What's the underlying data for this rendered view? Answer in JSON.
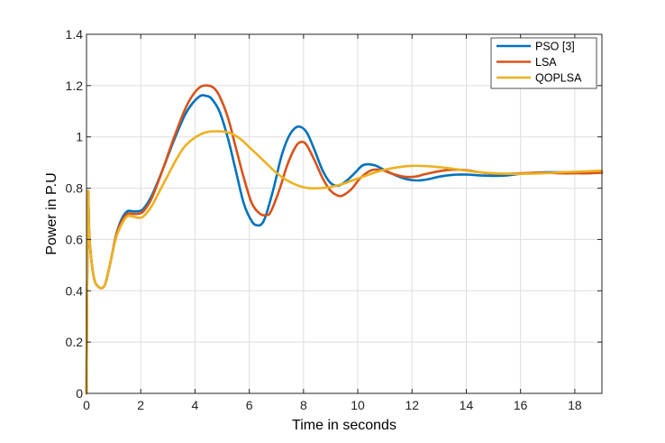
{
  "chart_data": {
    "type": "line",
    "title": "",
    "xlabel": "Time in seconds",
    "ylabel": "Power in P.U",
    "xlim": [
      0,
      19
    ],
    "ylim": [
      0,
      1.4
    ],
    "xticks": [
      0,
      2,
      4,
      6,
      8,
      10,
      12,
      14,
      16,
      18
    ],
    "yticks": [
      0,
      0.2,
      0.4,
      0.6,
      0.8,
      1,
      1.2,
      1.4
    ],
    "grid": true,
    "legend_position": "top-right",
    "series": [
      {
        "name": "PSO [3]",
        "color": "#0072BD",
        "x": [
          0,
          0.05,
          0.1,
          0.2,
          0.3,
          0.4,
          0.55,
          0.7,
          0.9,
          1.1,
          1.3,
          1.5,
          1.7,
          1.9,
          2.1,
          2.4,
          2.8,
          3.2,
          3.6,
          3.9,
          4.2,
          4.4,
          4.6,
          4.9,
          5.2,
          5.5,
          5.8,
          6.1,
          6.3,
          6.45,
          6.6,
          6.9,
          7.2,
          7.5,
          7.8,
          8.1,
          8.4,
          8.7,
          9.0,
          9.3,
          9.6,
          9.9,
          10.2,
          10.6,
          11.0,
          11.4,
          11.8,
          12.2,
          12.6,
          13.0,
          13.5,
          14.0,
          14.5,
          15.0,
          15.5,
          16.0,
          16.5,
          17.0,
          17.5,
          18.0,
          18.5,
          19.0
        ],
        "y": [
          0,
          0.76,
          0.62,
          0.5,
          0.44,
          0.42,
          0.41,
          0.43,
          0.52,
          0.62,
          0.68,
          0.71,
          0.71,
          0.71,
          0.72,
          0.77,
          0.87,
          0.98,
          1.08,
          1.13,
          1.16,
          1.16,
          1.15,
          1.1,
          1.0,
          0.87,
          0.74,
          0.67,
          0.655,
          0.66,
          0.69,
          0.8,
          0.93,
          1.01,
          1.04,
          1.02,
          0.95,
          0.87,
          0.82,
          0.81,
          0.83,
          0.86,
          0.89,
          0.89,
          0.87,
          0.85,
          0.835,
          0.83,
          0.835,
          0.845,
          0.852,
          0.853,
          0.85,
          0.848,
          0.85,
          0.856,
          0.86,
          0.862,
          0.862,
          0.862,
          0.862,
          0.863
        ]
      },
      {
        "name": "LSA",
        "color": "#D95319",
        "x": [
          0,
          0.05,
          0.1,
          0.2,
          0.3,
          0.4,
          0.55,
          0.7,
          0.9,
          1.1,
          1.3,
          1.5,
          1.7,
          1.9,
          2.1,
          2.4,
          2.8,
          3.2,
          3.6,
          3.9,
          4.2,
          4.5,
          4.7,
          4.9,
          5.2,
          5.5,
          5.8,
          6.1,
          6.4,
          6.65,
          6.8,
          7.1,
          7.4,
          7.7,
          7.9,
          8.1,
          8.4,
          8.7,
          9.0,
          9.3,
          9.5,
          9.8,
          10.1,
          10.5,
          10.9,
          11.3,
          11.7,
          12.1,
          12.5,
          13.0,
          13.5,
          14.0,
          14.5,
          15.0,
          15.5,
          16.0,
          16.5,
          17.0,
          17.5,
          18.0,
          18.5,
          19.0
        ],
        "y": [
          0,
          0.76,
          0.62,
          0.5,
          0.44,
          0.42,
          0.41,
          0.43,
          0.52,
          0.62,
          0.67,
          0.7,
          0.7,
          0.7,
          0.71,
          0.76,
          0.87,
          0.99,
          1.1,
          1.16,
          1.195,
          1.2,
          1.19,
          1.16,
          1.08,
          0.96,
          0.84,
          0.74,
          0.7,
          0.695,
          0.71,
          0.79,
          0.89,
          0.96,
          0.98,
          0.97,
          0.91,
          0.84,
          0.79,
          0.77,
          0.775,
          0.8,
          0.84,
          0.87,
          0.87,
          0.855,
          0.845,
          0.845,
          0.855,
          0.866,
          0.872,
          0.87,
          0.862,
          0.857,
          0.856,
          0.858,
          0.86,
          0.86,
          0.858,
          0.858,
          0.858,
          0.86
        ]
      },
      {
        "name": "QOPLSA",
        "color": "#EDB120",
        "x": [
          0,
          0.05,
          0.1,
          0.2,
          0.3,
          0.4,
          0.55,
          0.7,
          0.9,
          1.1,
          1.3,
          1.5,
          1.7,
          1.9,
          2.1,
          2.4,
          2.7,
          3.0,
          3.3,
          3.6,
          3.9,
          4.2,
          4.5,
          4.8,
          5.1,
          5.4,
          5.7,
          6.0,
          6.3,
          6.6,
          7.0,
          7.4,
          7.8,
          8.2,
          8.6,
          9.0,
          9.4,
          9.8,
          10.2,
          10.6,
          11.0,
          11.5,
          12.0,
          12.5,
          13.0,
          13.5,
          14.0,
          14.5,
          15.0,
          15.5,
          16.0,
          16.5,
          17.0,
          17.5,
          18.0,
          18.5,
          19.0
        ],
        "y": [
          0,
          0.76,
          0.62,
          0.5,
          0.44,
          0.42,
          0.41,
          0.43,
          0.52,
          0.61,
          0.66,
          0.69,
          0.69,
          0.685,
          0.69,
          0.73,
          0.79,
          0.85,
          0.91,
          0.96,
          0.99,
          1.01,
          1.02,
          1.022,
          1.02,
          1.01,
          0.99,
          0.96,
          0.93,
          0.9,
          0.86,
          0.83,
          0.81,
          0.8,
          0.8,
          0.805,
          0.815,
          0.83,
          0.845,
          0.86,
          0.872,
          0.882,
          0.887,
          0.886,
          0.882,
          0.876,
          0.868,
          0.862,
          0.858,
          0.856,
          0.856,
          0.857,
          0.859,
          0.862,
          0.864,
          0.866,
          0.868
        ]
      }
    ]
  }
}
